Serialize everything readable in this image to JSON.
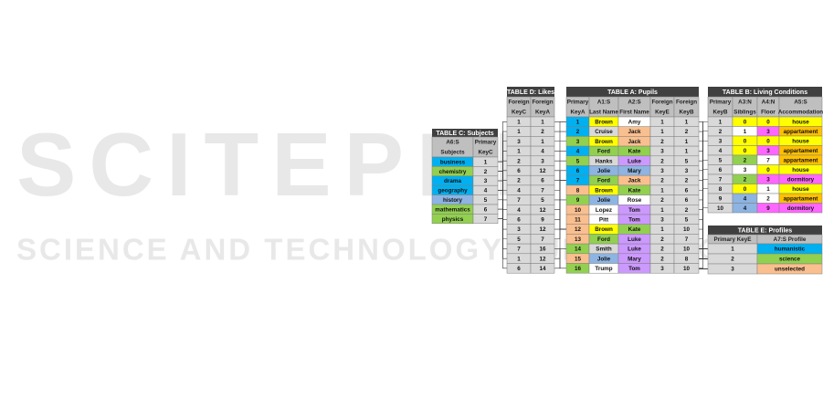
{
  "watermark": {
    "title": "SCITEPRESS",
    "subtitle": "SCIENCE AND TECHNOLOGY PUBLICATIONS"
  },
  "tables": [
    {
      "title": "TABLE C: Subjects",
      "headers": [
        [
          "A6:S",
          "Subjects"
        ],
        [
          "Primary",
          "KeyC"
        ]
      ],
      "rows": [
        [
          "business",
          1
        ],
        [
          "chemistry",
          2
        ],
        [
          "drama",
          3
        ],
        [
          "geography",
          4
        ],
        [
          "history",
          5
        ],
        [
          "mathematics",
          6
        ],
        [
          "physics",
          7
        ]
      ]
    },
    {
      "title": "TABLE D: Likes",
      "headers": [
        [
          "Foreign",
          "KeyC"
        ],
        [
          "Foreign",
          "KeyA"
        ]
      ],
      "rows": [
        [
          1,
          1
        ],
        [
          1,
          2
        ],
        [
          3,
          1
        ],
        [
          1,
          4
        ],
        [
          2,
          3
        ],
        [
          6,
          12
        ],
        [
          2,
          6
        ],
        [
          4,
          7
        ],
        [
          7,
          5
        ],
        [
          4,
          12
        ],
        [
          6,
          9
        ],
        [
          3,
          12
        ],
        [
          5,
          7
        ],
        [
          7,
          16
        ],
        [
          1,
          12
        ],
        [
          6,
          14
        ]
      ]
    },
    {
      "title": "TABLE A: Pupils",
      "headers": [
        [
          "Primary",
          "KeyA"
        ],
        [
          "A1:S",
          "Last Name"
        ],
        [
          "A2:S",
          "First Name"
        ],
        [
          "Foreign",
          "KeyE"
        ],
        [
          "Foreign",
          "KeyB"
        ]
      ],
      "rows": [
        [
          1,
          "Brown",
          "Amy",
          1,
          1
        ],
        [
          2,
          "Cruise",
          "Jack",
          1,
          2
        ],
        [
          3,
          "Brown",
          "Jack",
          2,
          1
        ],
        [
          4,
          "Ford",
          "Kate",
          3,
          1
        ],
        [
          5,
          "Hanks",
          "Luke",
          2,
          5
        ],
        [
          6,
          "Jolie",
          "Mary",
          3,
          3
        ],
        [
          7,
          "Ford",
          "Jack",
          2,
          2
        ],
        [
          8,
          "Brown",
          "Kate",
          1,
          6
        ],
        [
          9,
          "Jolie",
          "Rose",
          2,
          6
        ],
        [
          10,
          "Lopez",
          "Tom",
          1,
          2
        ],
        [
          11,
          "Pitt",
          "Tom",
          3,
          5
        ],
        [
          12,
          "Brown",
          "Kate",
          1,
          10
        ],
        [
          13,
          "Ford",
          "Luke",
          2,
          7
        ],
        [
          14,
          "Smith",
          "Luke",
          2,
          10
        ],
        [
          15,
          "Jolie",
          "Mary",
          2,
          8
        ],
        [
          16,
          "Trump",
          "Tom",
          3,
          10
        ]
      ]
    },
    {
      "title": "TABLE B: Living Conditions",
      "headers": [
        [
          "Primary",
          "KeyB"
        ],
        [
          "A3:N",
          "Siblings"
        ],
        [
          "A4:N",
          "Floor"
        ],
        [
          "A5:S",
          "Accommodation"
        ]
      ],
      "rows": [
        [
          1,
          0,
          0,
          "house"
        ],
        [
          2,
          1,
          3,
          "appartament"
        ],
        [
          3,
          0,
          0,
          "house"
        ],
        [
          4,
          0,
          3,
          "appartament"
        ],
        [
          5,
          2,
          7,
          "appartament"
        ],
        [
          6,
          3,
          0,
          "house"
        ],
        [
          7,
          2,
          3,
          "dormitory"
        ],
        [
          8,
          0,
          1,
          "house"
        ],
        [
          9,
          4,
          2,
          "appartament"
        ],
        [
          10,
          4,
          9,
          "dormitory"
        ]
      ]
    },
    {
      "title": "TABLE E: Profiles",
      "headers": [
        [
          "Primary KeyE"
        ],
        [
          "A7:S  Profile"
        ]
      ],
      "rows": [
        [
          1,
          "humanistic"
        ],
        [
          2,
          "science"
        ],
        [
          3,
          "unselected"
        ]
      ]
    }
  ]
}
